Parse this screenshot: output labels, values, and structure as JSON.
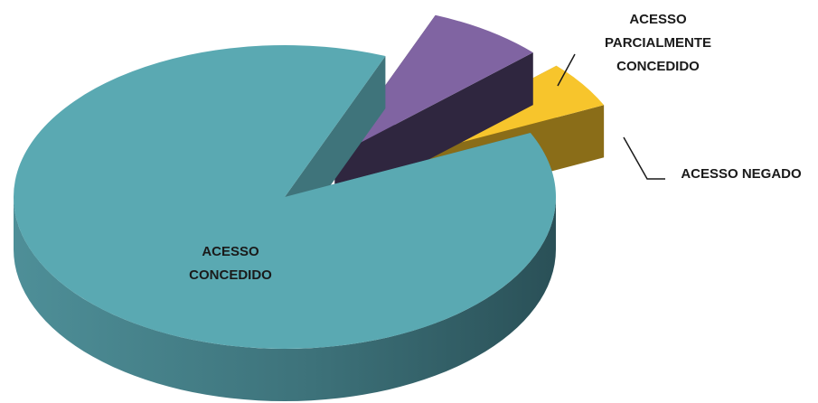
{
  "chart_data": {
    "type": "pie",
    "style": "3d-exploded",
    "title": "",
    "slices": [
      {
        "label_lines": [
          "ACESSO",
          "CONCEDIDO"
        ],
        "value": 88,
        "color": "#5aa9b2"
      },
      {
        "label_lines": [
          "ACESSO NEGADO"
        ],
        "value": 7,
        "color": "#8064a2"
      },
      {
        "label_lines": [
          "ACESSO",
          "PARCIALMENTE",
          "CONCEDIDO"
        ],
        "value": 5,
        "color": "#f7c52c"
      }
    ],
    "legend": "none",
    "data_labels": "category-name"
  }
}
